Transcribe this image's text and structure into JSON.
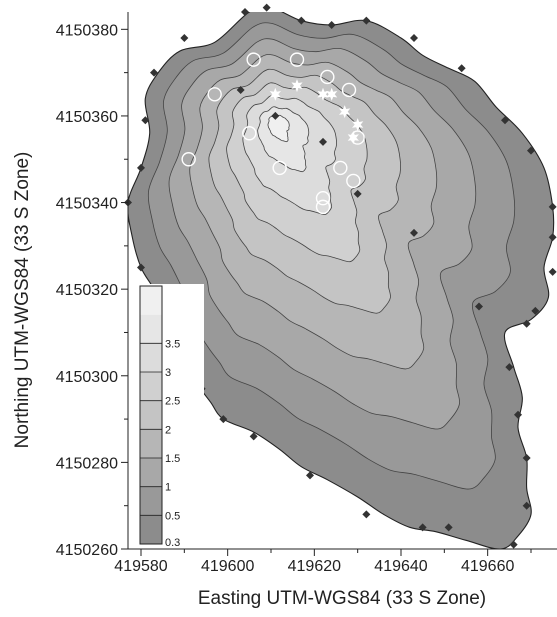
{
  "chart_data": {
    "type": "contour",
    "xlabel": "Easting UTM-WGS84 (33 S Zone)",
    "ylabel": "Northing UTM-WGS84 (33 S Zone)",
    "xlim": [
      419577,
      419676
    ],
    "ylim": [
      4150260,
      4150384
    ],
    "x_ticks": [
      419580,
      419600,
      419620,
      419640,
      419660
    ],
    "x_tick_labels": [
      "419580",
      "419600",
      "419620",
      "419640",
      "419660"
    ],
    "y_ticks": [
      4150260,
      4150280,
      4150300,
      4150320,
      4150340,
      4150360,
      4150380
    ],
    "y_tick_labels": [
      "4150260",
      "4150280",
      "4150300",
      "4150320",
      "4150340",
      "4150360",
      "4150380"
    ],
    "legend": {
      "placement": "bottom-left",
      "levels": [
        "0.3",
        "0.5",
        "1",
        "1.5",
        "2",
        "2.5",
        "3",
        "3.5"
      ],
      "colors": [
        "#8c8c8c",
        "#999999",
        "#a8a8a8",
        "#b6b6b6",
        "#c4c4c4",
        "#d0d0d0",
        "#dcdcdc",
        "#e6e6e6",
        "#f0f0f0"
      ]
    },
    "contour_levels": [
      0.3,
      0.5,
      1,
      1.5,
      2,
      2.5,
      3,
      3.5
    ],
    "boundary_points": [
      [
        419605,
        4150384
      ],
      [
        419610,
        4150385
      ],
      [
        419617,
        4150382
      ],
      [
        419624,
        4150381
      ],
      [
        419632,
        4150382
      ],
      [
        419640,
        4150378
      ],
      [
        419645,
        4150374
      ],
      [
        419651,
        4150371
      ],
      [
        419657,
        4150368
      ],
      [
        419662,
        4150362
      ],
      [
        419668,
        4150356
      ],
      [
        419673,
        4150348
      ],
      [
        419675,
        4150339
      ],
      [
        419675,
        4150332
      ],
      [
        419673,
        4150325
      ],
      [
        419674,
        4150318
      ],
      [
        419670,
        4150313
      ],
      [
        419664,
        4150310
      ],
      [
        419666,
        4150302
      ],
      [
        419668,
        4150295
      ],
      [
        419667,
        4150288
      ],
      [
        419669,
        4150281
      ],
      [
        419669,
        4150274
      ],
      [
        419670,
        4150268
      ],
      [
        419667,
        4150263
      ],
      [
        419663,
        4150260
      ],
      [
        419655,
        4150262
      ],
      [
        419648,
        4150264
      ],
      [
        419642,
        4150265
      ],
      [
        419636,
        4150268
      ],
      [
        419630,
        4150272
      ],
      [
        419623,
        4150276
      ],
      [
        419617,
        4150279
      ],
      [
        419612,
        4150283
      ],
      [
        419606,
        4150287
      ],
      [
        419599,
        4150290
      ],
      [
        419596,
        4150294
      ],
      [
        419593,
        4150298
      ],
      [
        419590,
        4150303
      ],
      [
        419589,
        4150308
      ],
      [
        419586,
        4150314
      ],
      [
        419583,
        4150320
      ],
      [
        419580,
        4150325
      ],
      [
        419578,
        4150332
      ],
      [
        419577,
        4150340
      ],
      [
        419580,
        4150348
      ],
      [
        419582,
        4150356
      ],
      [
        419581,
        4150364
      ],
      [
        419584,
        4150370
      ],
      [
        419589,
        4150375
      ],
      [
        419597,
        4150377
      ]
    ],
    "peak": [
      419611,
      4150359
    ],
    "series": [
      {
        "name": "",
        "marker": "diamond",
        "points": [
          [
            419604,
            4150384
          ],
          [
            419609,
            4150385
          ],
          [
            419617,
            4150382
          ],
          [
            419624,
            4150381
          ],
          [
            419632,
            4150382
          ],
          [
            419643,
            4150378
          ],
          [
            419654,
            4150371
          ],
          [
            419664,
            4150359
          ],
          [
            419670,
            4150352
          ],
          [
            419675,
            4150339
          ],
          [
            419675,
            4150332
          ],
          [
            419675,
            4150324
          ],
          [
            419671,
            4150315
          ],
          [
            419669,
            4150312
          ],
          [
            419665,
            4150302
          ],
          [
            419667,
            4150291
          ],
          [
            419669,
            4150281
          ],
          [
            419669,
            4150270
          ],
          [
            419666,
            4150261
          ],
          [
            419651,
            4150265
          ],
          [
            419645,
            4150265
          ],
          [
            419632,
            4150268
          ],
          [
            419619,
            4150277
          ],
          [
            419606,
            4150286
          ],
          [
            419599,
            4150290
          ],
          [
            419594,
            4150297
          ],
          [
            419587,
            4150303
          ],
          [
            419586,
            4150311
          ],
          [
            419582,
            4150319
          ],
          [
            419580,
            4150325
          ],
          [
            419577,
            4150340
          ],
          [
            419580,
            4150348
          ],
          [
            419581,
            4150359
          ],
          [
            419583,
            4150370
          ],
          [
            419590,
            4150378
          ],
          [
            419603,
            4150366
          ],
          [
            419611,
            4150360
          ],
          [
            419622,
            4150354
          ],
          [
            419630,
            4150342
          ],
          [
            419643,
            4150333
          ],
          [
            419658,
            4150316
          ]
        ]
      },
      {
        "name": "",
        "marker": "open-circle",
        "points": [
          [
            419606,
            4150373
          ],
          [
            419616,
            4150373
          ],
          [
            419623,
            4150369
          ],
          [
            419628,
            4150366
          ],
          [
            419597,
            4150365
          ],
          [
            419605,
            4150356
          ],
          [
            419591,
            4150350
          ],
          [
            419612,
            4150348
          ],
          [
            419626,
            4150348
          ],
          [
            419629,
            4150345
          ],
          [
            419630,
            4150355
          ],
          [
            419622,
            4150341
          ],
          [
            419622,
            4150339
          ]
        ]
      },
      {
        "name": "",
        "marker": "star",
        "points": [
          [
            419611,
            4150365
          ],
          [
            419616,
            4150367
          ],
          [
            419622,
            4150365
          ],
          [
            419624,
            4150365
          ],
          [
            419627,
            4150361
          ],
          [
            419629,
            4150355
          ],
          [
            419630,
            4150358
          ]
        ]
      }
    ]
  }
}
